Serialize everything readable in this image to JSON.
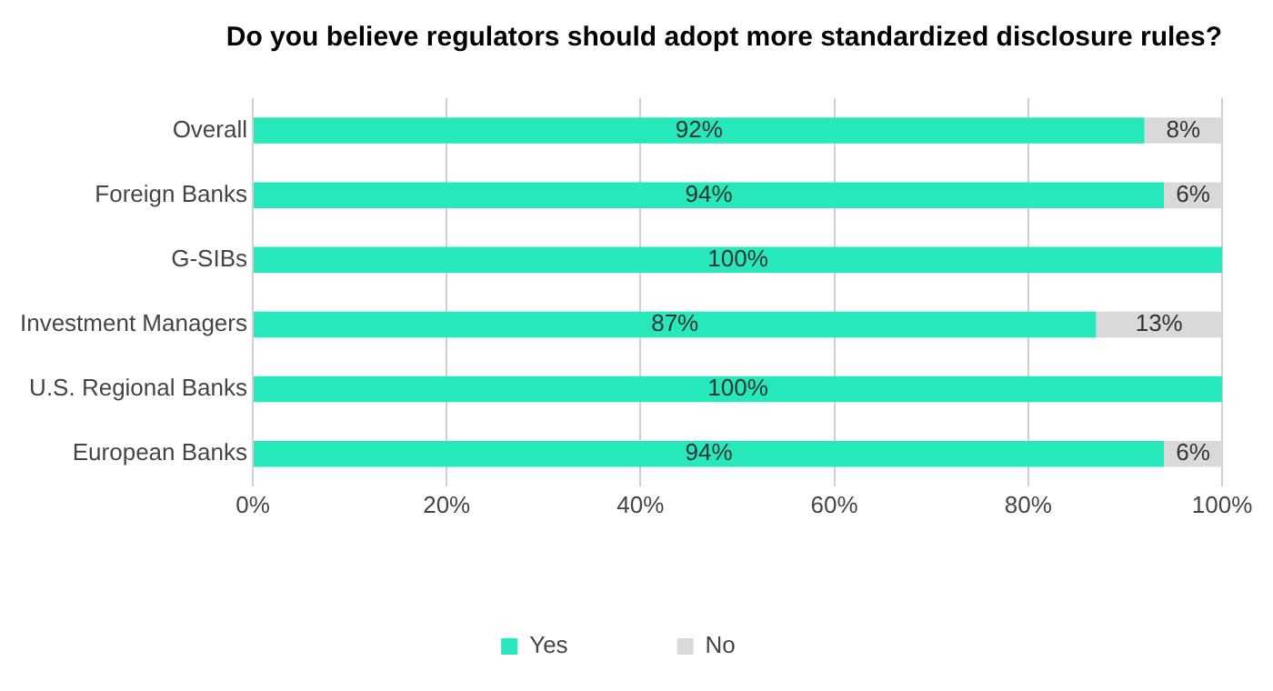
{
  "chart_data": {
    "type": "bar",
    "orientation": "horizontal",
    "stacked": true,
    "title": "Do you believe regulators should adopt more standardized disclosure rules?",
    "categories": [
      "Overall",
      "Foreign Banks",
      "G-SIBs",
      "Investment Managers",
      "U.S. Regional Banks",
      "European Banks"
    ],
    "series": [
      {
        "name": "Yes",
        "color": "#26e8bb",
        "values": [
          92,
          94,
          100,
          87,
          100,
          94
        ],
        "value_labels": [
          "92%",
          "94%",
          "100%",
          "87%",
          "100%",
          "94%"
        ]
      },
      {
        "name": "No",
        "color": "#d9d9d9",
        "values": [
          8,
          6,
          0,
          13,
          0,
          6
        ],
        "value_labels": [
          "8%",
          "6%",
          null,
          "13%",
          null,
          "6%"
        ]
      }
    ],
    "xlim": [
      0,
      100
    ],
    "xticks": [
      {
        "value": 0,
        "label": "0%"
      },
      {
        "value": 20,
        "label": "20%"
      },
      {
        "value": 40,
        "label": "40%"
      },
      {
        "value": 60,
        "label": "60%"
      },
      {
        "value": 80,
        "label": "80%"
      },
      {
        "value": 100,
        "label": "100%"
      }
    ],
    "grid": "x",
    "legend": "bottom"
  }
}
